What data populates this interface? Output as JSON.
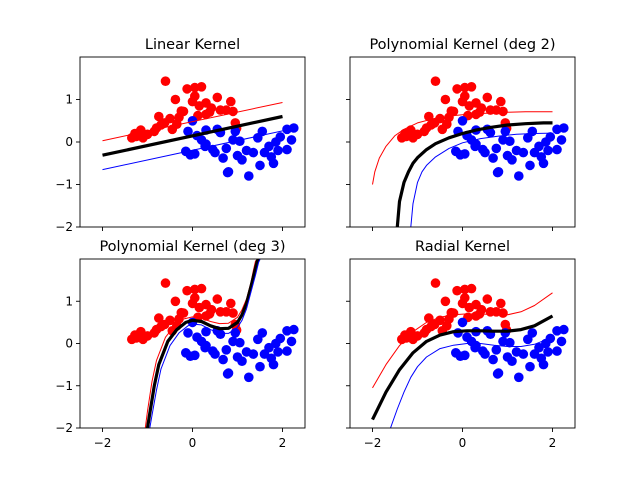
{
  "chart_data": [
    {
      "type": "scatter",
      "title": "Linear Kernel",
      "xlim": [
        -2.5,
        2.5
      ],
      "ylim": [
        -2,
        2
      ],
      "xticks": [
        "−2",
        "0",
        "2"
      ],
      "xtick_values": [
        -2,
        0,
        2
      ],
      "show_xticklabels": false,
      "yticks": [
        "−2",
        "−1",
        "0",
        "1"
      ],
      "ytick_values": [
        -2,
        -1,
        0,
        1
      ],
      "show_yticklabels": true,
      "curves": [
        {
          "color": "#000000",
          "width": 3.2,
          "x": [
            -2.0,
            2.0
          ],
          "y": [
            -0.31,
            0.6
          ]
        },
        {
          "color": "#ff0000",
          "width": 1.0,
          "x": [
            -2.0,
            2.0
          ],
          "y": [
            0.03,
            0.93
          ]
        },
        {
          "color": "#0000ff",
          "width": 1.0,
          "x": [
            -2.0,
            2.0
          ],
          "y": [
            -0.65,
            0.26
          ]
        }
      ]
    },
    {
      "type": "scatter",
      "title": "Polynomial Kernel (deg 2)",
      "xlim": [
        -2.5,
        2.5
      ],
      "ylim": [
        -2,
        2
      ],
      "xticks": [
        "−2",
        "0",
        "2"
      ],
      "xtick_values": [
        -2,
        0,
        2
      ],
      "show_xticklabels": false,
      "yticks": [
        "−2",
        "−1",
        "0",
        "1"
      ],
      "ytick_values": [
        -2,
        -1,
        0,
        1
      ],
      "show_yticklabels": false,
      "curves": [
        {
          "color": "#000000",
          "width": 3.2,
          "x": [
            -1.45,
            -1.4,
            -1.3,
            -1.2,
            -1.1,
            -1.0,
            -0.8,
            -0.6,
            -0.3,
            0.0,
            0.3,
            0.6,
            1.0,
            1.4,
            1.8,
            2.0
          ],
          "y": [
            -2.0,
            -1.4,
            -0.95,
            -0.7,
            -0.5,
            -0.37,
            -0.18,
            -0.04,
            0.1,
            0.2,
            0.28,
            0.34,
            0.4,
            0.43,
            0.45,
            0.45
          ]
        },
        {
          "color": "#ff0000",
          "width": 1.0,
          "x": [
            -2.0,
            -1.95,
            -1.85,
            -1.7,
            -1.5,
            -1.3,
            -1.0,
            -0.6,
            -0.2,
            0.2,
            0.6,
            1.0,
            1.4,
            1.8,
            2.0
          ],
          "y": [
            -1.0,
            -0.7,
            -0.38,
            -0.1,
            0.15,
            0.3,
            0.45,
            0.56,
            0.62,
            0.66,
            0.68,
            0.7,
            0.71,
            0.71,
            0.71
          ]
        },
        {
          "color": "#0000ff",
          "width": 1.0,
          "x": [
            -1.15,
            -1.1,
            -1.0,
            -0.9,
            -0.8,
            -0.6,
            -0.3,
            0.0,
            0.4,
            0.8,
            1.2,
            1.6,
            2.0
          ],
          "y": [
            -2.0,
            -1.45,
            -0.95,
            -0.7,
            -0.55,
            -0.35,
            -0.15,
            -0.02,
            0.08,
            0.14,
            0.18,
            0.2,
            0.21
          ]
        }
      ]
    },
    {
      "type": "scatter",
      "title": "Polynomial Kernel (deg 3)",
      "xlim": [
        -2.5,
        2.5
      ],
      "ylim": [
        -2,
        2
      ],
      "xticks": [
        "−2",
        "0",
        "2"
      ],
      "xtick_values": [
        -2,
        0,
        2
      ],
      "show_xticklabels": true,
      "yticks": [
        "−2",
        "−1",
        "0",
        "1"
      ],
      "ytick_values": [
        -2,
        -1,
        0,
        1
      ],
      "show_yticklabels": true,
      "curves": [
        {
          "color": "#ff0000",
          "width": 1.0,
          "x": [
            -1.05,
            -1.0,
            -0.9,
            -0.8,
            -0.6,
            -0.4,
            -0.2,
            0.0,
            0.2,
            0.4,
            0.6,
            0.8,
            1.0,
            1.1,
            1.2,
            1.3,
            1.35,
            1.4,
            1.45
          ],
          "y": [
            -2.0,
            -1.6,
            -0.9,
            -0.4,
            0.15,
            0.42,
            0.58,
            0.63,
            0.6,
            0.52,
            0.47,
            0.48,
            0.62,
            0.8,
            1.05,
            1.45,
            1.72,
            1.95,
            2.0
          ]
        },
        {
          "color": "#000000",
          "width": 3.2,
          "x": [
            -1.0,
            -0.95,
            -0.85,
            -0.75,
            -0.55,
            -0.35,
            -0.15,
            0.0,
            0.2,
            0.4,
            0.6,
            0.8,
            1.0,
            1.1,
            1.2,
            1.3,
            1.38,
            1.44,
            1.48
          ],
          "y": [
            -2.0,
            -1.65,
            -1.0,
            -0.5,
            0.05,
            0.33,
            0.5,
            0.55,
            0.52,
            0.42,
            0.35,
            0.36,
            0.5,
            0.68,
            0.95,
            1.35,
            1.7,
            1.95,
            2.0
          ]
        },
        {
          "color": "#0000ff",
          "width": 1.0,
          "x": [
            -0.95,
            -0.9,
            -0.8,
            -0.7,
            -0.5,
            -0.3,
            -0.1,
            0.0,
            0.2,
            0.4,
            0.6,
            0.8,
            1.0,
            1.1,
            1.2,
            1.3,
            1.4,
            1.47,
            1.5
          ],
          "y": [
            -2.0,
            -1.7,
            -1.1,
            -0.6,
            -0.05,
            0.25,
            0.42,
            0.46,
            0.44,
            0.33,
            0.24,
            0.24,
            0.38,
            0.55,
            0.82,
            1.22,
            1.62,
            1.92,
            2.0
          ]
        }
      ]
    },
    {
      "type": "scatter",
      "title": "Radial Kernel",
      "xlim": [
        -2.5,
        2.5
      ],
      "ylim": [
        -2,
        2
      ],
      "xticks": [
        "−2",
        "0",
        "2"
      ],
      "xtick_values": [
        -2,
        0,
        2
      ],
      "show_xticklabels": true,
      "yticks": [
        "−2",
        "−1",
        "0",
        "1"
      ],
      "ytick_values": [
        -2,
        -1,
        0,
        1
      ],
      "show_yticklabels": false,
      "curves": [
        {
          "color": "#000000",
          "width": 3.2,
          "x": [
            -2.0,
            -1.7,
            -1.4,
            -1.1,
            -0.8,
            -0.5,
            -0.2,
            0.1,
            0.4,
            0.7,
            1.0,
            1.3,
            1.6,
            2.0
          ],
          "y": [
            -1.8,
            -1.15,
            -0.62,
            -0.22,
            0.05,
            0.2,
            0.28,
            0.3,
            0.3,
            0.29,
            0.29,
            0.33,
            0.42,
            0.65
          ]
        },
        {
          "color": "#ff0000",
          "width": 1.0,
          "x": [
            -2.0,
            -1.7,
            -1.4,
            -1.1,
            -0.8,
            -0.5,
            -0.2,
            0.1,
            0.4,
            0.7,
            1.0,
            1.3,
            1.6,
            2.0
          ],
          "y": [
            -1.05,
            -0.5,
            -0.05,
            0.28,
            0.5,
            0.62,
            0.68,
            0.7,
            0.7,
            0.68,
            0.68,
            0.75,
            0.9,
            1.2
          ]
        },
        {
          "color": "#0000ff",
          "width": 1.0,
          "x": [
            -1.6,
            -1.45,
            -1.3,
            -1.15,
            -1.0,
            -0.8,
            -0.5,
            -0.2,
            0.1,
            0.4,
            0.7,
            1.0,
            1.3,
            1.6,
            2.0
          ],
          "y": [
            -2.0,
            -1.55,
            -1.15,
            -0.8,
            -0.55,
            -0.32,
            -0.12,
            -0.04,
            0.0,
            0.0,
            -0.04,
            -0.07,
            -0.07,
            -0.02,
            0.15
          ]
        }
      ]
    }
  ],
  "points": {
    "red": [
      [
        -1.35,
        0.1
      ],
      [
        -1.25,
        0.13
      ],
      [
        -1.28,
        0.2
      ],
      [
        -1.15,
        0.28
      ],
      [
        -1.0,
        0.18
      ],
      [
        -0.85,
        0.25
      ],
      [
        -0.8,
        0.33
      ],
      [
        -0.7,
        0.4
      ],
      [
        -0.62,
        0.45
      ],
      [
        -0.5,
        0.55
      ],
      [
        -0.45,
        0.3
      ],
      [
        -0.35,
        0.42
      ],
      [
        -0.3,
        0.58
      ],
      [
        -0.25,
        0.73
      ],
      [
        -0.6,
        1.43
      ],
      [
        -0.38,
        1.0
      ],
      [
        -0.2,
        0.72
      ],
      [
        -0.12,
        1.25
      ],
      [
        0.0,
        0.95
      ],
      [
        0.05,
        1.08
      ],
      [
        0.15,
        0.85
      ],
      [
        0.2,
        1.3
      ],
      [
        0.05,
        1.28
      ],
      [
        0.3,
        0.92
      ],
      [
        0.42,
        0.8
      ],
      [
        0.38,
        0.7
      ],
      [
        0.55,
        1.05
      ],
      [
        0.62,
        0.75
      ],
      [
        0.75,
        0.75
      ],
      [
        0.9,
        0.72
      ],
      [
        0.85,
        0.95
      ],
      [
        0.95,
        0.45
      ],
      [
        0.98,
        0.32
      ],
      [
        0.3,
        0.65
      ],
      [
        0.12,
        0.62
      ],
      [
        -0.75,
        0.6
      ],
      [
        -1.1,
        0.1
      ]
    ],
    "blue": [
      [
        -0.1,
        0.25
      ],
      [
        -0.15,
        -0.22
      ],
      [
        -0.05,
        -0.3
      ],
      [
        0.05,
        -0.28
      ],
      [
        0.1,
        0.15
      ],
      [
        0.2,
        0.05
      ],
      [
        0.28,
        -0.1
      ],
      [
        0.3,
        0.28
      ],
      [
        0.45,
        -0.18
      ],
      [
        0.5,
        -0.25
      ],
      [
        0.55,
        0.3
      ],
      [
        0.62,
        0.22
      ],
      [
        0.68,
        -0.38
      ],
      [
        0.75,
        -0.15
      ],
      [
        0.78,
        -0.72
      ],
      [
        0.8,
        -0.7
      ],
      [
        0.9,
        0.05
      ],
      [
        0.95,
        0.25
      ],
      [
        1.0,
        -0.32
      ],
      [
        1.05,
        0.02
      ],
      [
        1.1,
        -0.42
      ],
      [
        1.2,
        -0.2
      ],
      [
        1.25,
        -0.8
      ],
      [
        1.35,
        -0.25
      ],
      [
        1.45,
        0.1
      ],
      [
        1.5,
        -0.55
      ],
      [
        1.55,
        0.25
      ],
      [
        1.6,
        -0.25
      ],
      [
        1.7,
        -0.1
      ],
      [
        1.75,
        -0.35
      ],
      [
        1.8,
        -0.5
      ],
      [
        1.85,
        0.0
      ],
      [
        1.9,
        -0.2
      ],
      [
        1.95,
        0.12
      ],
      [
        2.1,
        0.3
      ],
      [
        2.2,
        0.05
      ],
      [
        2.25,
        0.33
      ],
      [
        2.1,
        -0.18
      ],
      [
        0.0,
        0.5
      ],
      [
        0.3,
        -0.05
      ]
    ]
  },
  "colors": {
    "red": "#ff0000",
    "blue": "#0000ff",
    "boundary": "#000000"
  }
}
